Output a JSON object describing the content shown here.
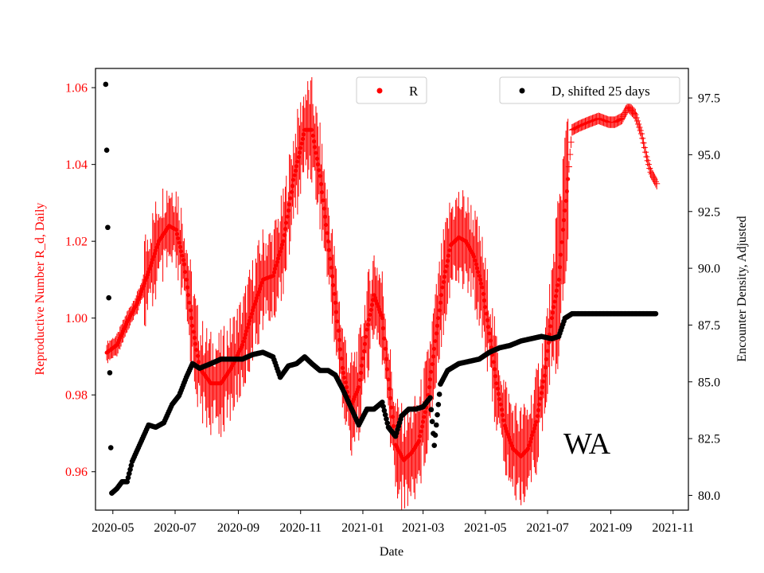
{
  "chart_data": {
    "type": "scatter",
    "annotation": "WA",
    "x_axis": {
      "label": "Date",
      "tick_labels": [
        "2020-05",
        "2020-07",
        "2020-09",
        "2020-11",
        "2021-01",
        "2021-03",
        "2021-05",
        "2021-07",
        "2021-09",
        "2021-11"
      ],
      "range": [
        "2020-04-14",
        "2021-11-16"
      ]
    },
    "left_axis": {
      "label": "Reproductive Number R_d, Daily",
      "color": "#ff0000",
      "range": [
        0.95,
        1.065
      ],
      "ticks": [
        0.96,
        0.98,
        1.0,
        1.02,
        1.04,
        1.06
      ],
      "tick_labels": [
        "0.96",
        "0.98",
        "1.00",
        "1.02",
        "1.04",
        "1.06"
      ]
    },
    "right_axis": {
      "label": "Encounter Density, Adjusted",
      "color": "#000000",
      "range": [
        79.35,
        98.8
      ],
      "ticks": [
        80.0,
        82.5,
        85.0,
        87.5,
        90.0,
        92.5,
        95.0,
        97.5
      ],
      "tick_labels": [
        "80.0",
        "82.5",
        "85.0",
        "87.5",
        "90.0",
        "92.5",
        "95.0",
        "97.5"
      ]
    },
    "legends": [
      {
        "label": "R",
        "color": "#ff0000",
        "position": "top-center"
      },
      {
        "label": "D, shifted 25 days",
        "color": "#000000",
        "position": "top-right"
      }
    ],
    "series": [
      {
        "name": "R",
        "axis": "left",
        "color": "#ff0000",
        "error_bars": true,
        "points": [
          [
            "2020-04-25",
            0.991
          ],
          [
            "2020-05-05",
            0.993
          ],
          [
            "2020-05-15",
            0.999
          ],
          [
            "2020-05-25",
            1.004
          ],
          [
            "2020-06-05",
            1.012
          ],
          [
            "2020-06-15",
            1.02
          ],
          [
            "2020-06-25",
            1.024
          ],
          [
            "2020-07-02",
            1.023
          ],
          [
            "2020-07-10",
            1.014
          ],
          [
            "2020-07-18",
            0.998
          ],
          [
            "2020-07-25",
            0.987
          ],
          [
            "2020-08-05",
            0.983
          ],
          [
            "2020-08-15",
            0.983
          ],
          [
            "2020-08-25",
            0.987
          ],
          [
            "2020-09-05",
            0.993
          ],
          [
            "2020-09-15",
            1.002
          ],
          [
            "2020-09-25",
            1.01
          ],
          [
            "2020-10-05",
            1.011
          ],
          [
            "2020-10-15",
            1.02
          ],
          [
            "2020-10-25",
            1.036
          ],
          [
            "2020-11-05",
            1.049
          ],
          [
            "2020-11-12",
            1.049
          ],
          [
            "2020-11-20",
            1.037
          ],
          [
            "2020-11-28",
            1.02
          ],
          [
            "2020-12-05",
            1.004
          ],
          [
            "2020-12-12",
            0.987
          ],
          [
            "2020-12-20",
            0.977
          ],
          [
            "2020-12-28",
            0.982
          ],
          [
            "2021-01-05",
            0.997
          ],
          [
            "2021-01-12",
            1.006
          ],
          [
            "2021-01-20",
            1.0
          ],
          [
            "2021-01-26",
            0.984
          ],
          [
            "2021-02-02",
            0.967
          ],
          [
            "2021-02-10",
            0.963
          ],
          [
            "2021-02-18",
            0.965
          ],
          [
            "2021-02-25",
            0.968
          ],
          [
            "2021-03-05",
            0.978
          ],
          [
            "2021-03-12",
            0.992
          ],
          [
            "2021-03-20",
            1.008
          ],
          [
            "2021-03-28",
            1.019
          ],
          [
            "2021-04-05",
            1.021
          ],
          [
            "2021-04-12",
            1.02
          ],
          [
            "2021-04-20",
            1.016
          ],
          [
            "2021-04-28",
            1.008
          ],
          [
            "2021-05-05",
            0.996
          ],
          [
            "2021-05-12",
            0.983
          ],
          [
            "2021-05-20",
            0.972
          ],
          [
            "2021-05-28",
            0.966
          ],
          [
            "2021-06-05",
            0.964
          ],
          [
            "2021-06-12",
            0.966
          ],
          [
            "2021-06-20",
            0.973
          ],
          [
            "2021-06-28",
            0.985
          ],
          [
            "2021-07-05",
            1.0
          ],
          [
            "2021-07-12",
            1.01
          ],
          [
            "2021-07-16",
            1.023
          ],
          [
            "2021-07-20",
            1.033
          ],
          [
            "2021-07-25",
            1.049
          ],
          [
            "2021-08-01",
            1.05
          ],
          [
            "2021-08-10",
            1.051
          ],
          [
            "2021-08-20",
            1.052
          ],
          [
            "2021-08-30",
            1.051
          ],
          [
            "2021-09-05",
            1.051
          ],
          [
            "2021-09-12",
            1.052
          ],
          [
            "2021-09-18",
            1.055
          ],
          [
            "2021-09-25",
            1.053
          ],
          [
            "2021-10-01",
            1.048
          ],
          [
            "2021-10-06",
            1.042
          ],
          [
            "2021-10-10",
            1.038
          ],
          [
            "2021-10-16",
            1.035
          ]
        ]
      },
      {
        "name": "D, shifted 25 days",
        "axis": "right",
        "color": "#000000",
        "points": [
          [
            "2020-04-24",
            98.1
          ],
          [
            "2020-04-25",
            95.2
          ],
          [
            "2020-04-26",
            91.8
          ],
          [
            "2020-04-27",
            88.7
          ],
          [
            "2020-04-28",
            85.4
          ],
          [
            "2020-04-29",
            82.1
          ],
          [
            "2020-04-30",
            80.1
          ],
          [
            "2020-05-05",
            80.3
          ],
          [
            "2020-05-10",
            80.6
          ],
          [
            "2020-05-15",
            80.6
          ],
          [
            "2020-05-20",
            81.5
          ],
          [
            "2020-05-28",
            82.3
          ],
          [
            "2020-06-05",
            83.1
          ],
          [
            "2020-06-12",
            83.0
          ],
          [
            "2020-06-20",
            83.2
          ],
          [
            "2020-06-28",
            84.0
          ],
          [
            "2020-07-05",
            84.4
          ],
          [
            "2020-07-12",
            85.2
          ],
          [
            "2020-07-18",
            85.8
          ],
          [
            "2020-07-25",
            85.6
          ],
          [
            "2020-08-05",
            85.8
          ],
          [
            "2020-08-15",
            86.0
          ],
          [
            "2020-08-25",
            86.0
          ],
          [
            "2020-09-05",
            86.0
          ],
          [
            "2020-09-15",
            86.2
          ],
          [
            "2020-09-25",
            86.3
          ],
          [
            "2020-10-05",
            86.1
          ],
          [
            "2020-10-12",
            85.2
          ],
          [
            "2020-10-20",
            85.7
          ],
          [
            "2020-10-28",
            85.8
          ],
          [
            "2020-11-05",
            86.1
          ],
          [
            "2020-11-12",
            85.8
          ],
          [
            "2020-11-20",
            85.5
          ],
          [
            "2020-11-28",
            85.5
          ],
          [
            "2020-12-05",
            85.3
          ],
          [
            "2020-12-12",
            84.7
          ],
          [
            "2020-12-20",
            83.9
          ],
          [
            "2020-12-28",
            83.1
          ],
          [
            "2021-01-05",
            83.8
          ],
          [
            "2021-01-12",
            83.8
          ],
          [
            "2021-01-20",
            84.1
          ],
          [
            "2021-01-26",
            83.0
          ],
          [
            "2021-02-02",
            82.6
          ],
          [
            "2021-02-08",
            83.5
          ],
          [
            "2021-02-15",
            83.8
          ],
          [
            "2021-02-22",
            83.8
          ],
          [
            "2021-03-01",
            83.9
          ],
          [
            "2021-03-08",
            84.3
          ],
          [
            "2021-03-12",
            82.2
          ],
          [
            "2021-03-18",
            84.9
          ],
          [
            "2021-03-25",
            85.5
          ],
          [
            "2021-04-05",
            85.8
          ],
          [
            "2021-04-15",
            85.9
          ],
          [
            "2021-04-25",
            86.0
          ],
          [
            "2021-05-05",
            86.3
          ],
          [
            "2021-05-15",
            86.5
          ],
          [
            "2021-05-25",
            86.6
          ],
          [
            "2021-06-05",
            86.8
          ],
          [
            "2021-06-15",
            86.9
          ],
          [
            "2021-06-25",
            87.0
          ],
          [
            "2021-07-05",
            86.9
          ],
          [
            "2021-07-12",
            87.0
          ],
          [
            "2021-07-18",
            87.8
          ],
          [
            "2021-07-25",
            88.0
          ],
          [
            "2021-08-05",
            88.0
          ],
          [
            "2021-08-15",
            88.0
          ],
          [
            "2021-08-25",
            88.0
          ],
          [
            "2021-09-05",
            88.0
          ],
          [
            "2021-09-15",
            88.0
          ],
          [
            "2021-09-25",
            88.0
          ],
          [
            "2021-10-05",
            88.0
          ],
          [
            "2021-10-15",
            88.0
          ]
        ]
      }
    ]
  }
}
